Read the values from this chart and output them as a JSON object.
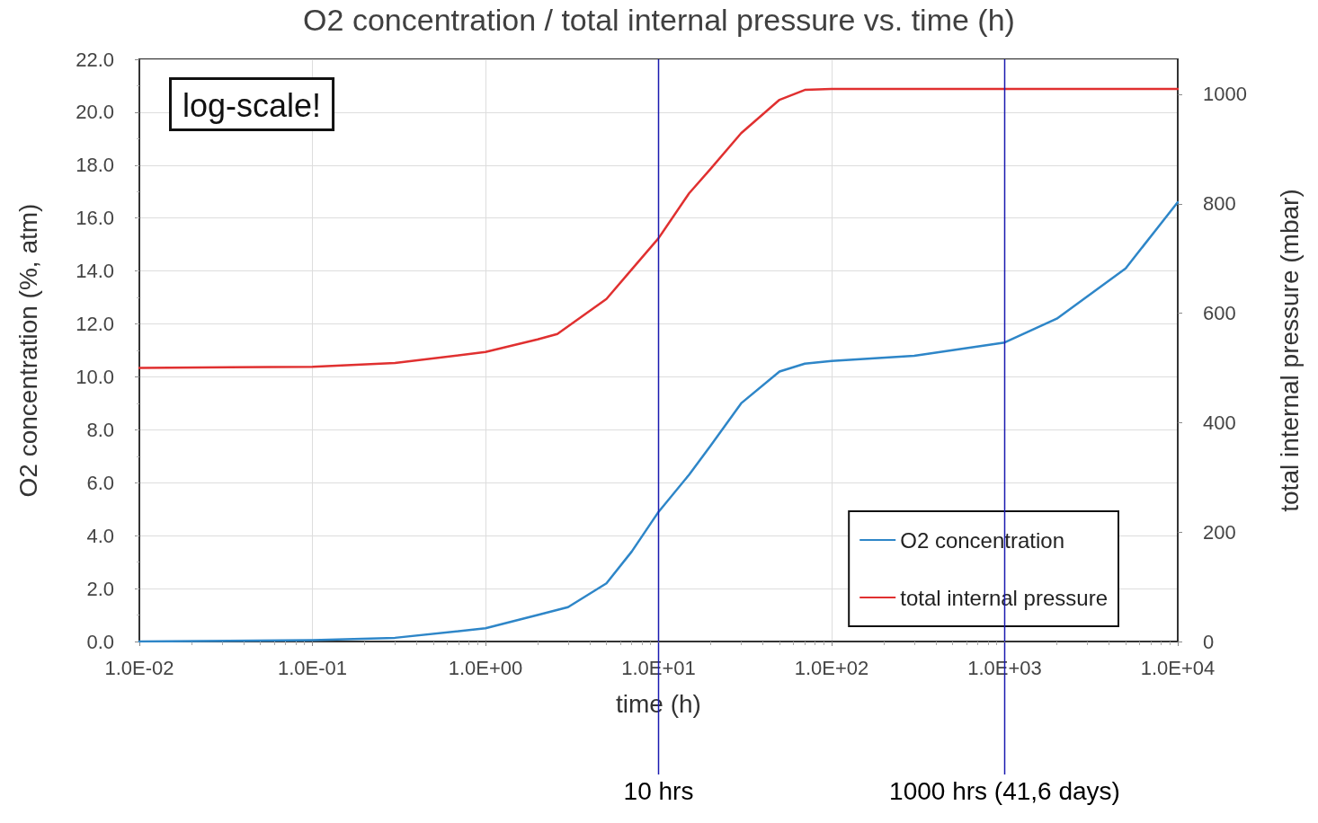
{
  "chart_data": {
    "type": "line",
    "title": "O2 concentration / total internal pressure vs. time (h)",
    "xlabel": "time (h)",
    "ylabel": "O2 concentration (%, atm)",
    "y2label": "total internal pressure (mbar)",
    "log": "x",
    "xlim": [
      0.01,
      10000
    ],
    "xticks": [
      {
        "value": 0.01,
        "label": "1.0E-02"
      },
      {
        "value": 0.1,
        "label": "1.0E-01"
      },
      {
        "value": 1,
        "label": "1.0E+00"
      },
      {
        "value": 10,
        "label": "1.0E+01"
      },
      {
        "value": 100,
        "label": "1.0E+02"
      },
      {
        "value": 1000,
        "label": "1.0E+03"
      },
      {
        "value": 10000,
        "label": "1.0E+04"
      }
    ],
    "ylim": [
      0,
      22
    ],
    "yticks": [
      {
        "value": 0,
        "label": "0.0"
      },
      {
        "value": 2,
        "label": "2.0"
      },
      {
        "value": 4,
        "label": "4.0"
      },
      {
        "value": 6,
        "label": "6.0"
      },
      {
        "value": 8,
        "label": "8.0"
      },
      {
        "value": 10,
        "label": "10.0"
      },
      {
        "value": 12,
        "label": "12.0"
      },
      {
        "value": 14,
        "label": "14.0"
      },
      {
        "value": 16,
        "label": "16.0"
      },
      {
        "value": 18,
        "label": "18.0"
      },
      {
        "value": 20,
        "label": "20.0"
      },
      {
        "value": 22,
        "label": "22.0"
      }
    ],
    "y2lim": [
      0,
      1064
    ],
    "y2ticks": [
      0,
      200,
      400,
      600,
      800,
      1000
    ],
    "series": [
      {
        "name": "O2 concentration",
        "color": "#2e86c8",
        "x": [
          0.01,
          0.1,
          0.3,
          1,
          2,
          3,
          5,
          7,
          10,
          15,
          20,
          30,
          50,
          70,
          100,
          300,
          1000,
          2000,
          5000,
          10000
        ],
        "values": [
          0,
          0.05,
          0.14,
          0.5,
          1.0,
          1.3,
          2.2,
          3.4,
          4.9,
          6.3,
          7.4,
          9.0,
          10.2,
          10.5,
          10.6,
          10.8,
          11.3,
          12.2,
          14.1,
          16.6
        ]
      },
      {
        "name": "total internal pressure",
        "color": "#e03030",
        "axis": "y2",
        "x": [
          0.01,
          0.1,
          0.3,
          1,
          2,
          2.6,
          5,
          7,
          10,
          15,
          20,
          30,
          50,
          70,
          100,
          1000,
          10000
        ],
        "values": [
          500,
          502,
          509,
          529,
          552,
          562,
          626,
          680,
          737,
          819,
          864,
          929,
          990,
          1008,
          1010,
          1010,
          1010
        ]
      }
    ],
    "ref_lines": [
      {
        "axis": "x",
        "value": 10,
        "label": "10 hrs",
        "color": "#1a1ab0"
      },
      {
        "axis": "x",
        "value": 1000,
        "label": "1000 hrs (41,6 days)",
        "color": "#1a1ab0"
      }
    ],
    "annotations": [
      "log-scale!"
    ],
    "grid": true,
    "legend": "bottom right",
    "marker": "none",
    "line_style": "solid"
  }
}
